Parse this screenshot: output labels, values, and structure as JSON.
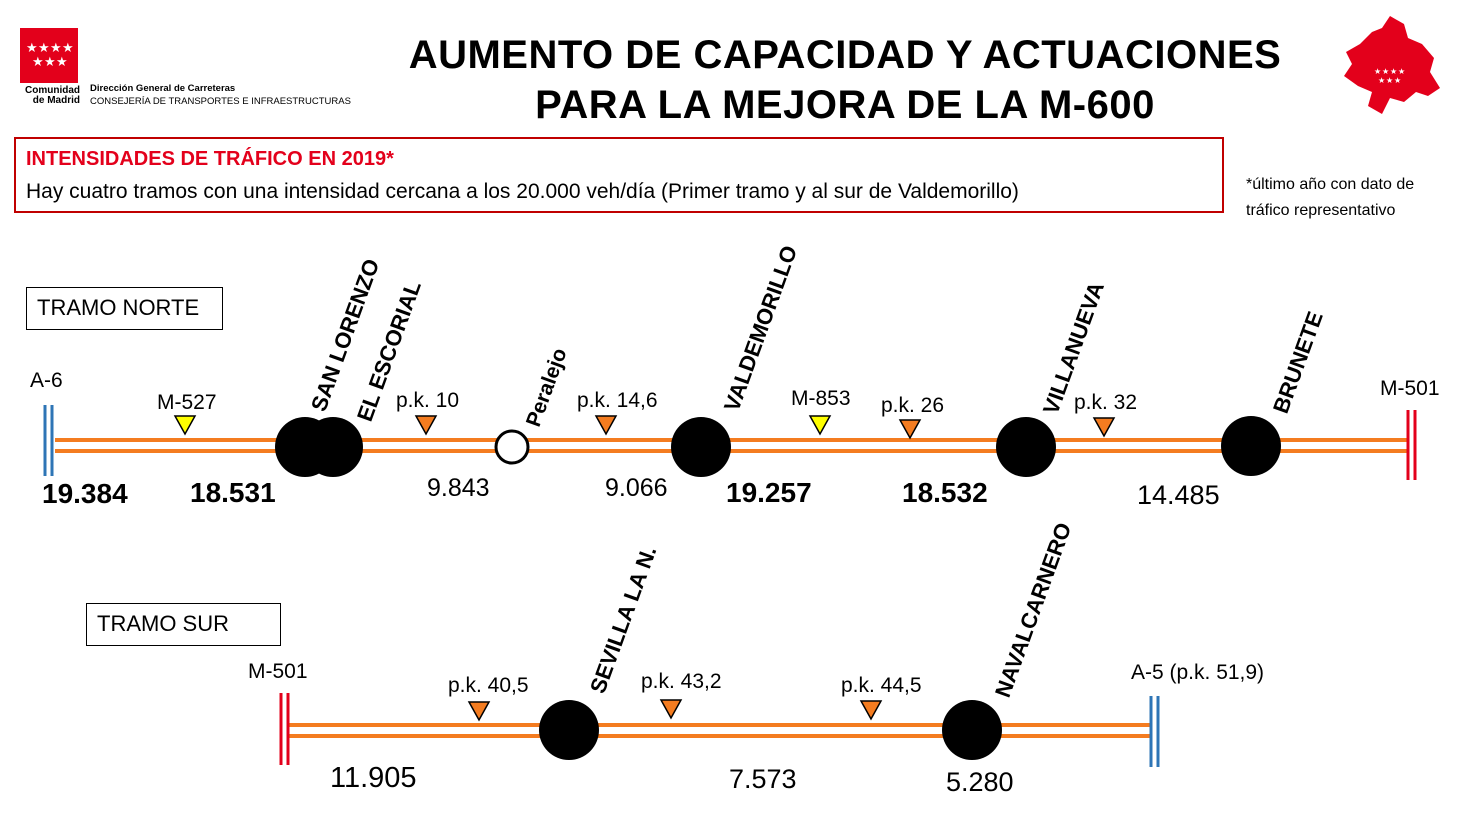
{
  "header": {
    "org_line1": "Dirección General de Carreteras",
    "org_line2": "CONSEJERÍA DE TRANSPORTES E INFRAESTRUCTURAS",
    "logo_text1": "Comunidad",
    "logo_text2": "de Madrid",
    "title_line1": "AUMENTO DE CAPACIDAD Y ACTUACIONES",
    "title_line2": "PARA LA MEJORA DE LA M-600"
  },
  "info": {
    "heading": "INTENSIDADES DE TRÁFICO EN 2019*",
    "text": "Hay cuatro tramos con una intensidad cercana a los 20.000 veh/día (Primer tramo y al sur de Valdemorillo)",
    "note_line1": "*último año con dato de",
    "note_line2": "tráfico representativo"
  },
  "colors": {
    "road": "#f47c20",
    "red": "#e3001b",
    "blue": "#2e75b6",
    "yellow": "#ffff00",
    "orange_marker": "#f47c20"
  },
  "norte": {
    "title": "TRAMO NORTE",
    "start": "A-6",
    "end": "M-501",
    "markers": [
      "M-527",
      "p.k. 10",
      "p.k. 14,6",
      "M-853",
      "p.k. 26",
      "p.k. 32"
    ],
    "towns": [
      "SAN LORENZO",
      "EL ESCORIAL",
      "Peralejo",
      "VALDEMORILLO",
      "VILLANUEVA",
      "BRUNETE"
    ],
    "intensities": [
      "19.384",
      "18.531",
      "9.843",
      "9.066",
      "19.257",
      "18.532",
      "14.485"
    ]
  },
  "sur": {
    "title": "TRAMO SUR",
    "start": "M-501",
    "end": "A-5 (p.k. 51,9)",
    "markers": [
      "p.k. 40,5",
      "p.k. 43,2",
      "p.k. 44,5"
    ],
    "towns": [
      "SEVILLA LA N.",
      "NAVALCARNERO"
    ],
    "intensities": [
      "11.905",
      "7.573",
      "5.280"
    ]
  }
}
